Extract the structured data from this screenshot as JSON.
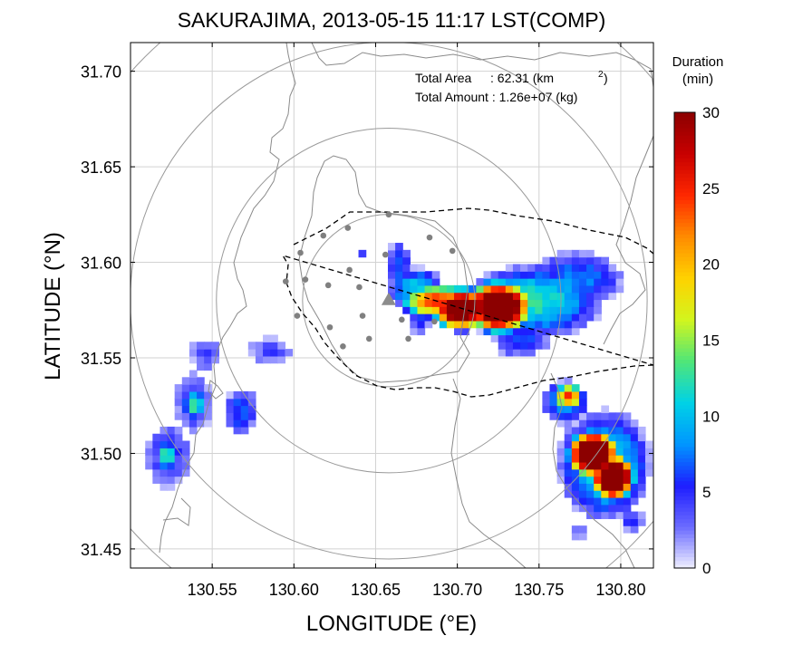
{
  "title": "SAKURAJIMA, 2013-05-15 11:17 LST(COMP)",
  "annotation": {
    "area_label": "Total Area",
    "area_value": ": 62.31 (km",
    "area_sup": "2",
    "area_close": ")",
    "amount_label": "Total Amount : 1.26e+07 (kg)"
  },
  "axes": {
    "xlabel": "LONGITUDE (°E)",
    "ylabel": "LATITUDE (°N)",
    "xlim": [
      130.5,
      130.82
    ],
    "ylim": [
      31.44,
      31.715
    ],
    "xticks": [
      "130.55",
      "130.60",
      "130.65",
      "130.70",
      "130.75",
      "130.80"
    ],
    "xtick_values": [
      130.55,
      130.6,
      130.65,
      130.7,
      130.75,
      130.8
    ],
    "yticks": [
      "31.45",
      "31.50",
      "31.55",
      "31.60",
      "31.65",
      "31.70"
    ],
    "ytick_values": [
      31.45,
      31.5,
      31.55,
      31.6,
      31.65,
      31.7
    ]
  },
  "colorbar": {
    "title_line1": "Duration",
    "title_line2": "(min)",
    "ticks": [
      "0",
      "5",
      "10",
      "15",
      "20",
      "25",
      "30"
    ],
    "range": [
      0,
      30
    ],
    "colors": [
      "#f0f0ff",
      "#6b6bff",
      "#1e1eff",
      "#0096ff",
      "#00d2e6",
      "#50e678",
      "#d2f51e",
      "#ffd200",
      "#ff8c00",
      "#ff2800",
      "#c80000",
      "#8c0000"
    ]
  },
  "map": {
    "volcano_lon": 130.658,
    "volcano_lat": 31.58,
    "range_rings_km": [
      5,
      10,
      15,
      20
    ],
    "station_points": [
      [
        130.604,
        31.605
      ],
      [
        130.618,
        31.614
      ],
      [
        130.633,
        31.618
      ],
      [
        130.658,
        31.625
      ],
      [
        130.683,
        31.613
      ],
      [
        130.697,
        31.606
      ],
      [
        130.595,
        31.59
      ],
      [
        130.607,
        31.591
      ],
      [
        130.621,
        31.588
      ],
      [
        130.634,
        31.596
      ],
      [
        130.64,
        31.587
      ],
      [
        130.656,
        31.604
      ],
      [
        130.602,
        31.572
      ],
      [
        130.622,
        31.566
      ],
      [
        130.642,
        31.572
      ],
      [
        130.63,
        31.556
      ],
      [
        130.646,
        31.56
      ],
      [
        130.666,
        31.57
      ],
      [
        130.67,
        31.56
      ],
      [
        130.686,
        31.569
      ]
    ]
  },
  "chart_data": {
    "type": "heatmap",
    "title": "SAKURAJIMA, 2013-05-15 11:17 LST(COMP)",
    "xlabel": "LONGITUDE (°E)",
    "ylabel": "LATITUDE (°N)",
    "value_label": "Duration (min)",
    "value_range": [
      0,
      30
    ],
    "total_area_km2": 62.31,
    "total_amount_kg": 12600000.0,
    "blobs": [
      {
        "lon": 130.723,
        "lat": 31.575,
        "rx": 0.018,
        "ry": 0.012,
        "peak": 30
      },
      {
        "lon": 130.7,
        "lat": 31.574,
        "rx": 0.016,
        "ry": 0.01,
        "peak": 27
      },
      {
        "lon": 130.685,
        "lat": 31.578,
        "rx": 0.02,
        "ry": 0.008,
        "peak": 18
      },
      {
        "lon": 130.672,
        "lat": 31.584,
        "rx": 0.014,
        "ry": 0.01,
        "peak": 8
      },
      {
        "lon": 130.745,
        "lat": 31.578,
        "rx": 0.035,
        "ry": 0.016,
        "peak": 9
      },
      {
        "lon": 130.77,
        "lat": 31.589,
        "rx": 0.025,
        "ry": 0.012,
        "peak": 6
      },
      {
        "lon": 130.736,
        "lat": 31.558,
        "rx": 0.015,
        "ry": 0.008,
        "peak": 5
      },
      {
        "lon": 130.662,
        "lat": 31.596,
        "rx": 0.007,
        "ry": 0.012,
        "peak": 5
      },
      {
        "lon": 130.781,
        "lat": 31.498,
        "rx": 0.014,
        "ry": 0.011,
        "peak": 30
      },
      {
        "lon": 130.793,
        "lat": 31.486,
        "rx": 0.012,
        "ry": 0.011,
        "peak": 30
      },
      {
        "lon": 130.788,
        "lat": 31.492,
        "rx": 0.024,
        "ry": 0.024,
        "peak": 9
      },
      {
        "lon": 130.766,
        "lat": 31.528,
        "rx": 0.008,
        "ry": 0.006,
        "peak": 18
      },
      {
        "lon": 130.764,
        "lat": 31.525,
        "rx": 0.012,
        "ry": 0.01,
        "peak": 7
      },
      {
        "lon": 130.52,
        "lat": 31.497,
        "rx": 0.006,
        "ry": 0.007,
        "peak": 10
      },
      {
        "lon": 130.521,
        "lat": 31.497,
        "rx": 0.012,
        "ry": 0.014,
        "peak": 4
      },
      {
        "lon": 130.537,
        "lat": 31.524,
        "rx": 0.006,
        "ry": 0.007,
        "peak": 10
      },
      {
        "lon": 130.537,
        "lat": 31.525,
        "rx": 0.01,
        "ry": 0.014,
        "peak": 4
      },
      {
        "lon": 130.543,
        "lat": 31.55,
        "rx": 0.008,
        "ry": 0.008,
        "peak": 3
      },
      {
        "lon": 130.565,
        "lat": 31.52,
        "rx": 0.009,
        "ry": 0.011,
        "peak": 5
      },
      {
        "lon": 130.583,
        "lat": 31.552,
        "rx": 0.012,
        "ry": 0.007,
        "peak": 3
      },
      {
        "lon": 130.64,
        "lat": 31.603,
        "rx": 0.003,
        "ry": 0.003,
        "peak": 3
      },
      {
        "lon": 130.675,
        "lat": 31.568,
        "rx": 0.006,
        "ry": 0.006,
        "peak": 4
      },
      {
        "lon": 130.772,
        "lat": 31.458,
        "rx": 0.004,
        "ry": 0.004,
        "peak": 3
      },
      {
        "lon": 130.805,
        "lat": 31.463,
        "rx": 0.006,
        "ry": 0.005,
        "peak": 4
      }
    ]
  }
}
